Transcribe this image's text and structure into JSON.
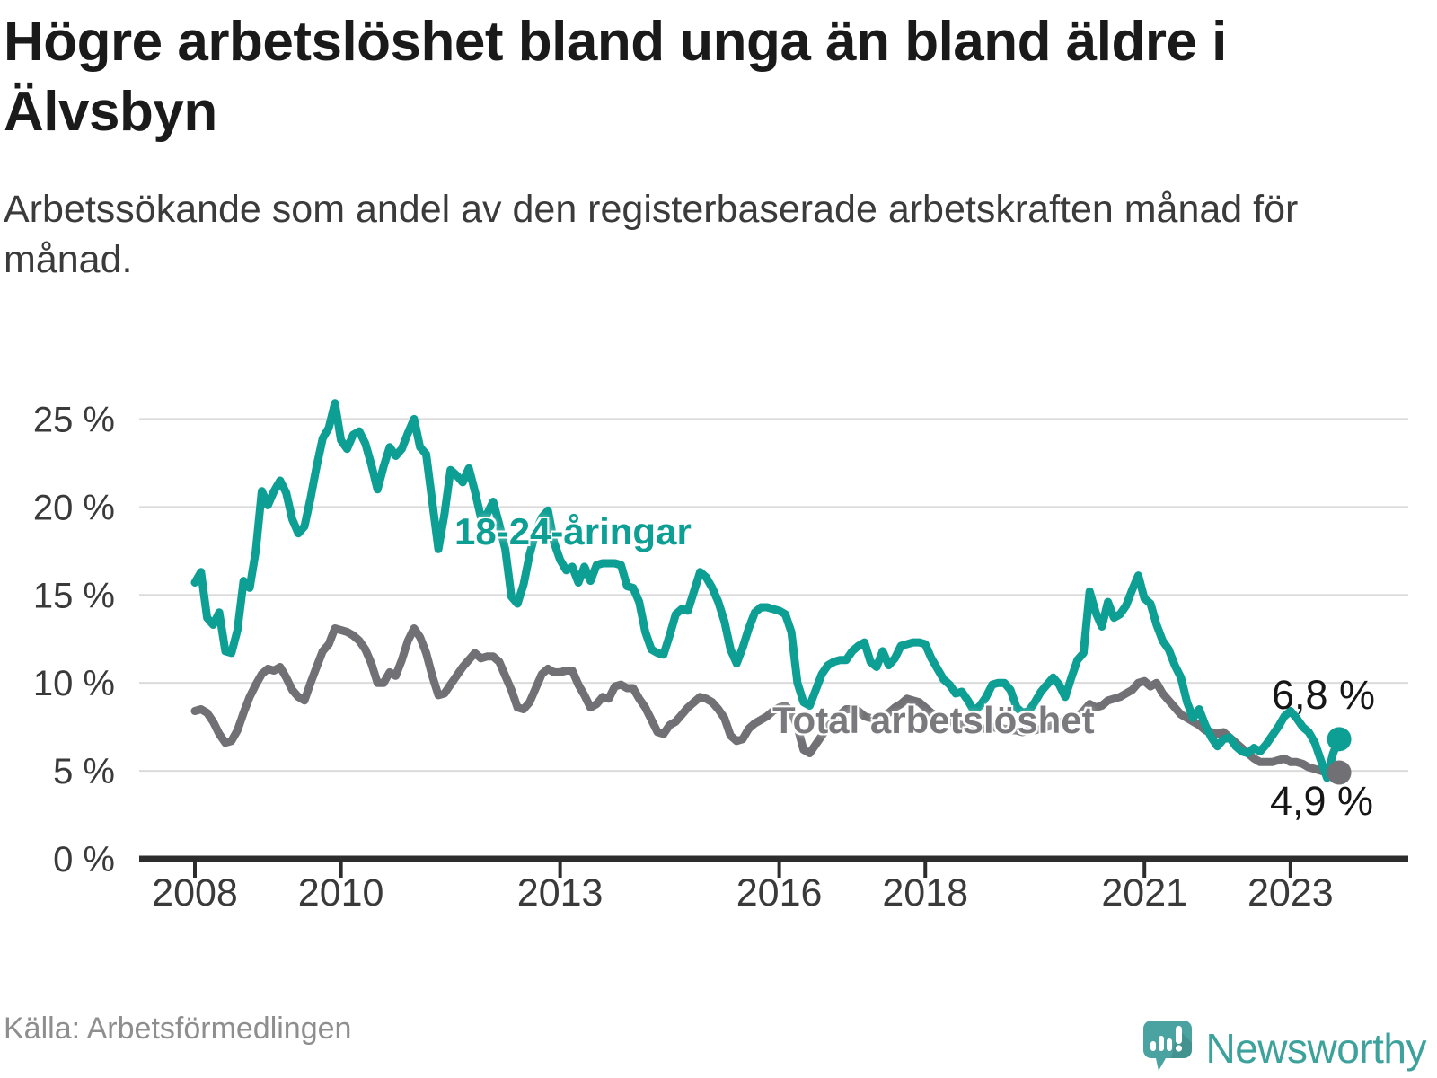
{
  "header": {
    "title": "Högre arbetslöshet bland unga än bland äldre i Älvsbyn",
    "subtitle": "Arbetssökande som andel av den registerbaserade arbetskraften månad för månad."
  },
  "footer": {
    "source": "Källa: Arbetsförmedlingen",
    "brand": "Newsworthy"
  },
  "colors": {
    "young": "#0d9e94",
    "total": "#717175",
    "grid": "#dbdbdb",
    "axis": "#2d2d2e",
    "tick_text": "#3a3a3a",
    "brand_teal": "#4aa3a1",
    "brand_text": "#3da19c"
  },
  "chart_data": {
    "type": "line",
    "x_start": "2008-01",
    "x_end": "2023-09",
    "months_per_point": 1,
    "ylim": [
      0,
      26.5
    ],
    "grid": "horizontal",
    "legend_position": "inline-labels",
    "yticks": [
      {
        "value": 0,
        "label": "0 %"
      },
      {
        "value": 5,
        "label": "5 %"
      },
      {
        "value": 10,
        "label": "10 %"
      },
      {
        "value": 15,
        "label": "15 %"
      },
      {
        "value": 20,
        "label": "20 %"
      },
      {
        "value": 25,
        "label": "25 %"
      }
    ],
    "xticks": [
      {
        "year": 2008,
        "label": "2008"
      },
      {
        "year": 2010,
        "label": "2010"
      },
      {
        "year": 2013,
        "label": "2013"
      },
      {
        "year": 2016,
        "label": "2016"
      },
      {
        "year": 2018,
        "label": "2018"
      },
      {
        "year": 2021,
        "label": "2021"
      },
      {
        "year": 2023,
        "label": "2023"
      }
    ],
    "series": [
      {
        "name": "total",
        "label": "Total arbetslöshet",
        "end_label": "4,9 %",
        "end_value": 4.9,
        "color": "#717175",
        "values": [
          8.4,
          8.5,
          8.3,
          7.8,
          7.1,
          6.6,
          6.7,
          7.3,
          8.3,
          9.2,
          9.9,
          10.5,
          10.8,
          10.7,
          10.9,
          10.3,
          9.6,
          9.2,
          9.0,
          10.0,
          10.9,
          11.8,
          12.2,
          13.1,
          13.0,
          12.9,
          12.7,
          12.4,
          11.9,
          11.1,
          10.0,
          10.0,
          10.6,
          10.4,
          11.3,
          12.4,
          13.1,
          12.6,
          11.7,
          10.4,
          9.3,
          9.4,
          9.9,
          10.4,
          10.9,
          11.3,
          11.7,
          11.4,
          11.5,
          11.5,
          11.2,
          10.4,
          9.6,
          8.6,
          8.5,
          8.9,
          9.7,
          10.5,
          10.8,
          10.6,
          10.6,
          10.7,
          10.7,
          9.9,
          9.3,
          8.6,
          8.8,
          9.2,
          9.1,
          9.8,
          9.9,
          9.7,
          9.7,
          9.1,
          8.6,
          7.9,
          7.2,
          7.1,
          7.6,
          7.8,
          8.2,
          8.6,
          8.9,
          9.2,
          9.1,
          8.9,
          8.5,
          8.0,
          7.0,
          6.7,
          6.8,
          7.4,
          7.7,
          7.9,
          8.1,
          8.4,
          8.6,
          8.7,
          8.4,
          7.5,
          6.2,
          6.0,
          6.5,
          7.0,
          7.5,
          7.9,
          8.2,
          8.5,
          8.5,
          8.4,
          8.1,
          8.0,
          8.0,
          8.1,
          8.3,
          8.6,
          8.8,
          9.1,
          9.0,
          8.9,
          8.6,
          8.3,
          8.1,
          8.0,
          7.8,
          7.7,
          7.6,
          7.5,
          7.5,
          7.4,
          7.4,
          7.5,
          7.4,
          7.4,
          7.3,
          7.3,
          7.2,
          7.3,
          7.3,
          7.4,
          7.5,
          7.6,
          7.7,
          7.9,
          8.0,
          8.1,
          8.4,
          8.8,
          8.6,
          8.7,
          9.0,
          9.1,
          9.2,
          9.4,
          9.6,
          10.0,
          10.1,
          9.8,
          10.0,
          9.4,
          9.0,
          8.6,
          8.2,
          8.0,
          7.8,
          7.6,
          7.3,
          7.2,
          7.1,
          7.2,
          6.9,
          6.6,
          6.3,
          6.0,
          5.7,
          5.5,
          5.5,
          5.5,
          5.6,
          5.7,
          5.5,
          5.5,
          5.4,
          5.2,
          5.1,
          5.0,
          4.9,
          5.2,
          4.9
        ]
      },
      {
        "name": "young",
        "label": "18-24-åringar",
        "end_label": "6,8 %",
        "end_value": 6.8,
        "color": "#0d9e94",
        "values": [
          15.7,
          16.3,
          13.7,
          13.3,
          14.0,
          11.8,
          11.7,
          13.0,
          15.8,
          15.4,
          17.5,
          20.9,
          20.1,
          20.9,
          21.5,
          20.8,
          19.3,
          18.5,
          18.9,
          20.5,
          22.3,
          23.9,
          24.5,
          25.9,
          23.8,
          23.3,
          24.1,
          24.3,
          23.6,
          22.4,
          21.0,
          22.3,
          23.4,
          22.9,
          23.3,
          24.2,
          25.0,
          23.4,
          23.0,
          20.3,
          17.6,
          19.6,
          22.1,
          21.8,
          21.4,
          22.2,
          20.9,
          19.4,
          19.6,
          20.3,
          19.0,
          17.6,
          14.9,
          14.5,
          15.6,
          17.3,
          18.6,
          19.4,
          19.8,
          18.0,
          17.0,
          16.4,
          16.6,
          15.7,
          16.6,
          15.8,
          16.7,
          16.8,
          16.8,
          16.8,
          16.7,
          15.5,
          15.4,
          14.6,
          12.9,
          11.9,
          11.7,
          11.6,
          12.7,
          13.9,
          14.2,
          14.1,
          15.2,
          16.3,
          16.0,
          15.4,
          14.6,
          13.5,
          11.9,
          11.1,
          12.0,
          13.1,
          14.0,
          14.3,
          14.3,
          14.2,
          14.1,
          13.9,
          12.9,
          10.0,
          8.9,
          8.7,
          9.6,
          10.5,
          11.0,
          11.2,
          11.3,
          11.3,
          11.8,
          12.1,
          12.3,
          11.2,
          10.9,
          11.8,
          11.0,
          11.4,
          12.1,
          12.2,
          12.3,
          12.3,
          12.2,
          11.4,
          10.8,
          10.2,
          9.9,
          9.4,
          9.5,
          9.0,
          8.4,
          8.7,
          9.2,
          9.9,
          10.0,
          10.0,
          9.6,
          8.6,
          8.3,
          8.4,
          8.9,
          9.5,
          9.9,
          10.3,
          9.9,
          9.2,
          10.3,
          11.3,
          11.7,
          15.2,
          14.0,
          13.2,
          14.6,
          13.7,
          13.9,
          14.4,
          15.3,
          16.1,
          14.8,
          14.5,
          13.3,
          12.4,
          11.9,
          11.0,
          10.3,
          8.9,
          8.0,
          8.5,
          7.6,
          6.9,
          6.4,
          6.8,
          6.9,
          6.4,
          6.1,
          6.0,
          6.3,
          6.1,
          6.5,
          7.0,
          7.5,
          8.1,
          8.4,
          8.0,
          7.5,
          7.2,
          6.6,
          5.6,
          4.6,
          6.0,
          6.8
        ]
      }
    ]
  }
}
